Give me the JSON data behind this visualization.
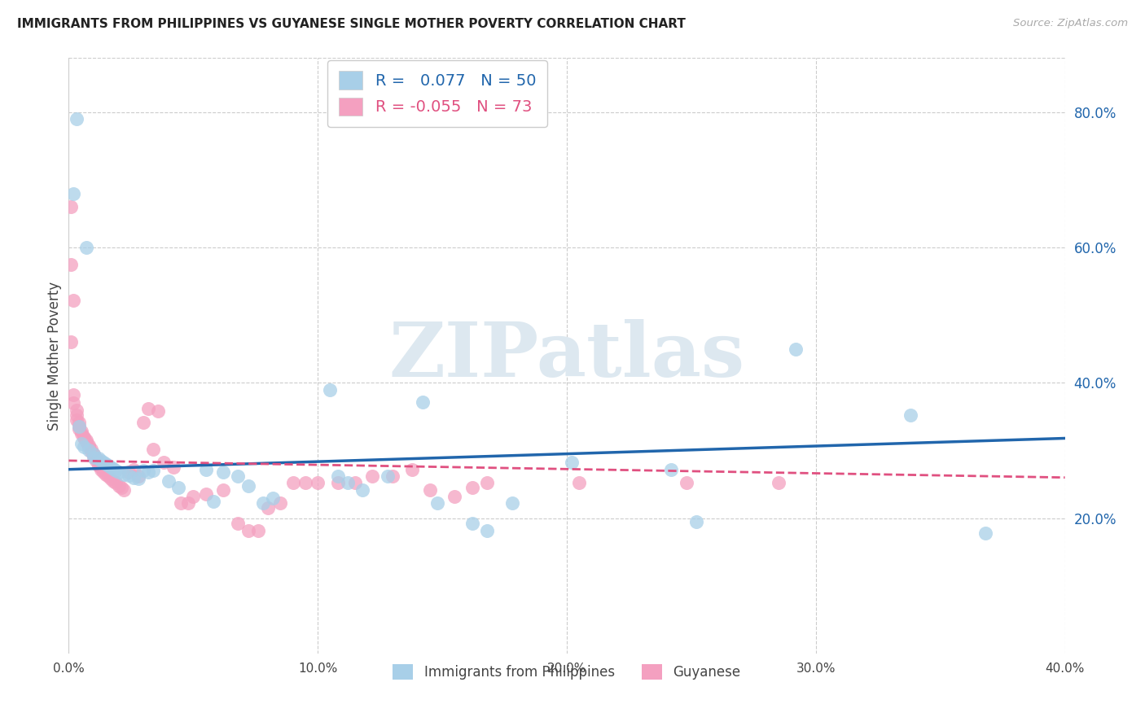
{
  "title": "IMMIGRANTS FROM PHILIPPINES VS GUYANESE SINGLE MOTHER POVERTY CORRELATION CHART",
  "source": "Source: ZipAtlas.com",
  "ylabel_label": "Single Mother Poverty",
  "xlim": [
    0.0,
    0.4
  ],
  "ylim": [
    0.0,
    0.88
  ],
  "xticks": [
    0.0,
    0.1,
    0.2,
    0.3,
    0.4
  ],
  "xticklabels": [
    "0.0%",
    "10.0%",
    "20.0%",
    "30.0%",
    "40.0%"
  ],
  "yticks_right": [
    0.2,
    0.4,
    0.6,
    0.8
  ],
  "yticklabels_right": [
    "20.0%",
    "40.0%",
    "60.0%",
    "80.0%"
  ],
  "legend_label1": "Immigrants from Philippines",
  "legend_label2": "Guyanese",
  "R1": "0.077",
  "N1": "50",
  "R2": "-0.055",
  "N2": "73",
  "blue_scatter_color": "#a8cfe8",
  "pink_scatter_color": "#f4a0c0",
  "blue_line_color": "#2166ac",
  "pink_line_color": "#e05080",
  "watermark_color": "#d8e8f0",
  "watermark": "ZIPatlas",
  "blue_points": [
    [
      0.003,
      0.79
    ],
    [
      0.002,
      0.68
    ],
    [
      0.007,
      0.6
    ],
    [
      0.004,
      0.335
    ],
    [
      0.005,
      0.31
    ],
    [
      0.006,
      0.305
    ],
    [
      0.008,
      0.3
    ],
    [
      0.01,
      0.295
    ],
    [
      0.01,
      0.29
    ],
    [
      0.012,
      0.288
    ],
    [
      0.013,
      0.285
    ],
    [
      0.014,
      0.282
    ],
    [
      0.015,
      0.28
    ],
    [
      0.016,
      0.278
    ],
    [
      0.017,
      0.275
    ],
    [
      0.018,
      0.273
    ],
    [
      0.019,
      0.27
    ],
    [
      0.02,
      0.268
    ],
    [
      0.022,
      0.265
    ],
    [
      0.024,
      0.263
    ],
    [
      0.026,
      0.26
    ],
    [
      0.028,
      0.258
    ],
    [
      0.03,
      0.27
    ],
    [
      0.032,
      0.268
    ],
    [
      0.034,
      0.27
    ],
    [
      0.04,
      0.255
    ],
    [
      0.044,
      0.245
    ],
    [
      0.055,
      0.272
    ],
    [
      0.058,
      0.225
    ],
    [
      0.062,
      0.268
    ],
    [
      0.068,
      0.262
    ],
    [
      0.072,
      0.248
    ],
    [
      0.078,
      0.222
    ],
    [
      0.082,
      0.23
    ],
    [
      0.105,
      0.39
    ],
    [
      0.108,
      0.262
    ],
    [
      0.112,
      0.252
    ],
    [
      0.118,
      0.242
    ],
    [
      0.128,
      0.262
    ],
    [
      0.142,
      0.372
    ],
    [
      0.148,
      0.222
    ],
    [
      0.162,
      0.192
    ],
    [
      0.168,
      0.182
    ],
    [
      0.178,
      0.222
    ],
    [
      0.202,
      0.282
    ],
    [
      0.242,
      0.272
    ],
    [
      0.252,
      0.195
    ],
    [
      0.292,
      0.45
    ],
    [
      0.338,
      0.352
    ],
    [
      0.368,
      0.178
    ]
  ],
  "pink_points": [
    [
      0.001,
      0.66
    ],
    [
      0.001,
      0.575
    ],
    [
      0.002,
      0.522
    ],
    [
      0.001,
      0.46
    ],
    [
      0.002,
      0.382
    ],
    [
      0.002,
      0.37
    ],
    [
      0.003,
      0.36
    ],
    [
      0.003,
      0.352
    ],
    [
      0.003,
      0.345
    ],
    [
      0.004,
      0.342
    ],
    [
      0.004,
      0.335
    ],
    [
      0.004,
      0.332
    ],
    [
      0.005,
      0.328
    ],
    [
      0.005,
      0.325
    ],
    [
      0.006,
      0.32
    ],
    [
      0.006,
      0.318
    ],
    [
      0.007,
      0.315
    ],
    [
      0.007,
      0.312
    ],
    [
      0.008,
      0.308
    ],
    [
      0.008,
      0.305
    ],
    [
      0.009,
      0.302
    ],
    [
      0.009,
      0.298
    ],
    [
      0.01,
      0.295
    ],
    [
      0.01,
      0.292
    ],
    [
      0.011,
      0.288
    ],
    [
      0.011,
      0.285
    ],
    [
      0.012,
      0.282
    ],
    [
      0.012,
      0.278
    ],
    [
      0.013,
      0.275
    ],
    [
      0.013,
      0.272
    ],
    [
      0.014,
      0.268
    ],
    [
      0.015,
      0.265
    ],
    [
      0.016,
      0.262
    ],
    [
      0.017,
      0.258
    ],
    [
      0.018,
      0.255
    ],
    [
      0.019,
      0.252
    ],
    [
      0.02,
      0.248
    ],
    [
      0.021,
      0.245
    ],
    [
      0.022,
      0.242
    ],
    [
      0.024,
      0.268
    ],
    [
      0.026,
      0.272
    ],
    [
      0.028,
      0.262
    ],
    [
      0.03,
      0.342
    ],
    [
      0.032,
      0.362
    ],
    [
      0.034,
      0.302
    ],
    [
      0.036,
      0.358
    ],
    [
      0.038,
      0.282
    ],
    [
      0.042,
      0.275
    ],
    [
      0.045,
      0.222
    ],
    [
      0.048,
      0.222
    ],
    [
      0.05,
      0.232
    ],
    [
      0.055,
      0.235
    ],
    [
      0.062,
      0.242
    ],
    [
      0.068,
      0.192
    ],
    [
      0.072,
      0.182
    ],
    [
      0.076,
      0.182
    ],
    [
      0.08,
      0.215
    ],
    [
      0.085,
      0.222
    ],
    [
      0.09,
      0.252
    ],
    [
      0.095,
      0.252
    ],
    [
      0.1,
      0.252
    ],
    [
      0.108,
      0.252
    ],
    [
      0.115,
      0.252
    ],
    [
      0.122,
      0.262
    ],
    [
      0.13,
      0.262
    ],
    [
      0.138,
      0.272
    ],
    [
      0.145,
      0.242
    ],
    [
      0.155,
      0.232
    ],
    [
      0.162,
      0.245
    ],
    [
      0.168,
      0.252
    ],
    [
      0.205,
      0.252
    ],
    [
      0.248,
      0.252
    ],
    [
      0.285,
      0.252
    ]
  ],
  "background_color": "#ffffff",
  "grid_color": "#cccccc"
}
